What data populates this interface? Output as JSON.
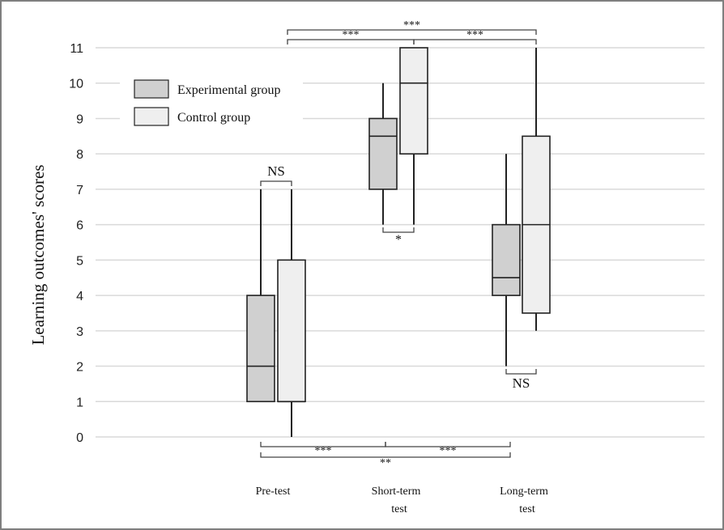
{
  "chart_data": {
    "type": "boxplot",
    "ylabel": "Learning outcomes' scores",
    "ylim": [
      0,
      11
    ],
    "yticks": [
      "0",
      "1",
      "2",
      "3",
      "4",
      "5",
      "6",
      "7",
      "8",
      "9",
      "10",
      "11"
    ],
    "grid": true,
    "legend_position": "top-left",
    "categories": [
      {
        "lines": [
          "Pre-test"
        ]
      },
      {
        "lines": [
          "Short-term",
          "test"
        ]
      },
      {
        "lines": [
          "Long-term",
          "test"
        ]
      }
    ],
    "series": [
      {
        "name": "Experimental group",
        "color": "#d0d0d0",
        "boxes": [
          {
            "min": 1,
            "q1": 1,
            "median": 2,
            "q3": 4,
            "max": 7
          },
          {
            "min": 6,
            "q1": 7,
            "median": 8.5,
            "q3": 9,
            "max": 10
          },
          {
            "min": 2,
            "q1": 4,
            "median": 4.5,
            "q3": 6,
            "max": 8
          }
        ]
      },
      {
        "name": "Control group",
        "color": "#efefef",
        "boxes": [
          {
            "min": 0,
            "q1": 1,
            "median": 1,
            "q3": 5,
            "max": 7
          },
          {
            "min": 6,
            "q1": 8,
            "median": 10,
            "q3": 11,
            "max": 11
          },
          {
            "min": 3,
            "q1": 3.5,
            "median": 6,
            "q3": 8.5,
            "max": 11
          }
        ]
      }
    ],
    "annotations": [
      {
        "label": "NS",
        "between": [
          "Pre-test Experimental group",
          "Pre-test Control group"
        ]
      },
      {
        "label": "*",
        "between": [
          "Short-term Experimental group",
          "Short-term Control group"
        ]
      },
      {
        "label": "NS",
        "between": [
          "Long-term Experimental group",
          "Long-term Control group"
        ]
      },
      {
        "label": "***",
        "between": [
          "Pre-test Control group",
          "Short-term Control group"
        ]
      },
      {
        "label": "***",
        "between": [
          "Short-term Control group",
          "Long-term Control group"
        ]
      },
      {
        "label": "***",
        "between": [
          "Pre-test Control group",
          "Long-term Control group"
        ]
      },
      {
        "label": "***",
        "between": [
          "Pre-test Experimental group",
          "Short-term Experimental group"
        ]
      },
      {
        "label": "***",
        "between": [
          "Short-term Experimental group",
          "Long-term Experimental group"
        ]
      },
      {
        "label": "**",
        "between": [
          "Pre-test Experimental group",
          "Long-term Experimental group"
        ]
      }
    ]
  }
}
